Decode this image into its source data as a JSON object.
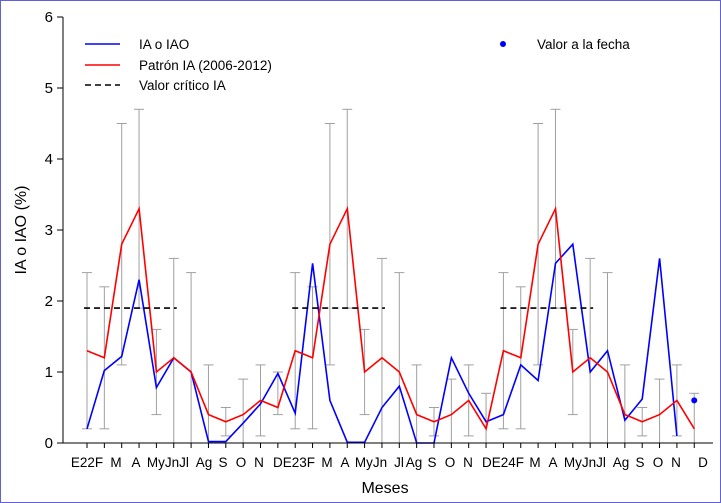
{
  "chart_data": {
    "type": "line",
    "xlabel": "Meses",
    "ylabel": "IA o IAO (%)",
    "ylim": [
      0,
      6
    ],
    "yticks": [
      0,
      1,
      2,
      3,
      4,
      5,
      6
    ],
    "grid": false,
    "legend_position": "top-left",
    "categories": [
      "E22",
      "F",
      "M",
      "A",
      "My",
      "Jn",
      "Jl",
      "Ag",
      "S",
      "O",
      "N",
      "D",
      "E23",
      "F",
      "M",
      "A",
      "My",
      "Jn",
      "Jl",
      "Ag",
      "S",
      "O",
      "N",
      "D",
      "E24",
      "F",
      "M",
      "A",
      "My",
      "Jn",
      "Jl",
      "Ag",
      "S",
      "O",
      "N",
      "D"
    ],
    "tick_labels": [
      "E22F",
      "M",
      "A",
      "MyJn",
      "Jl",
      "Ag",
      "S",
      "O",
      "N",
      "DE23F",
      "M",
      "A",
      "MyJn",
      "Jl",
      "Ag",
      "S",
      "O",
      "N",
      "DE24F",
      "M",
      "A",
      "MyJn",
      "Jl",
      "Ag",
      "S",
      "O",
      "N",
      "D"
    ],
    "series": [
      {
        "name": "IA o IAO",
        "color": "#0000ff",
        "style": "solid",
        "values": [
          0.2,
          1.02,
          1.22,
          2.3,
          0.78,
          1.2,
          1.0,
          0.02,
          0.02,
          0.28,
          0.55,
          0.98,
          0.42,
          2.53,
          0.6,
          0.01,
          0.01,
          0.5,
          0.8,
          0.0,
          0.0,
          1.2,
          0.7,
          0.3,
          0.4,
          1.1,
          0.88,
          2.53,
          2.8,
          1.0,
          1.3,
          0.32,
          0.62,
          2.6,
          0.1,
          null
        ]
      },
      {
        "name": "Patrón IA (2006-2012)",
        "color": "#ff0000",
        "style": "solid",
        "values": [
          1.3,
          1.2,
          2.8,
          3.3,
          1.0,
          1.2,
          1.0,
          0.4,
          0.3,
          0.4,
          0.6,
          0.5,
          1.3,
          1.2,
          2.8,
          3.3,
          1.0,
          1.2,
          1.0,
          0.4,
          0.3,
          0.4,
          0.6,
          0.2,
          1.3,
          1.2,
          2.8,
          3.3,
          1.0,
          1.2,
          1.0,
          0.4,
          0.3,
          0.4,
          0.6,
          0.2
        ]
      },
      {
        "name": "Valor crítico IA",
        "color": "#000000",
        "style": "dashed",
        "segments": [
          {
            "x_start_index": 0,
            "x_end_index": 5,
            "value": 1.9
          },
          {
            "x_start_index": 12,
            "x_end_index": 17,
            "value": 1.9
          },
          {
            "x_start_index": 24,
            "x_end_index": 29,
            "value": 1.9
          }
        ]
      },
      {
        "name": "Valor a la fecha",
        "color": "#0000ff",
        "style": "point",
        "points": [
          {
            "x_index": 35,
            "value": 0.6
          }
        ]
      }
    ],
    "error_bars": {
      "color": "#a0a0a0",
      "low": [
        0.2,
        0.2,
        1.1,
        1.9,
        0.4,
        0.0,
        0.0,
        0.0,
        0.1,
        0.0,
        0.1,
        0.4,
        0.2,
        0.2,
        1.1,
        1.9,
        0.4,
        0.0,
        0.0,
        0.0,
        0.1,
        0.0,
        0.1,
        0.0,
        0.2,
        0.2,
        1.1,
        1.9,
        0.4,
        0.0,
        0.0,
        0.0,
        0.1,
        0.0,
        0.1,
        0.0
      ],
      "high": [
        2.4,
        2.2,
        4.5,
        4.7,
        1.6,
        2.6,
        2.4,
        1.1,
        0.5,
        0.9,
        1.1,
        1.0,
        2.4,
        2.2,
        4.5,
        4.7,
        1.6,
        2.6,
        2.4,
        1.1,
        0.5,
        0.9,
        1.1,
        0.7,
        2.4,
        2.2,
        4.5,
        4.7,
        1.6,
        2.6,
        2.4,
        1.1,
        0.5,
        0.9,
        1.1,
        0.7
      ]
    },
    "legend": {
      "items": [
        "IA o IAO",
        "Patrón IA (2006-2012)",
        "Valor crítico IA"
      ],
      "point_item": "Valor a la fecha"
    }
  }
}
